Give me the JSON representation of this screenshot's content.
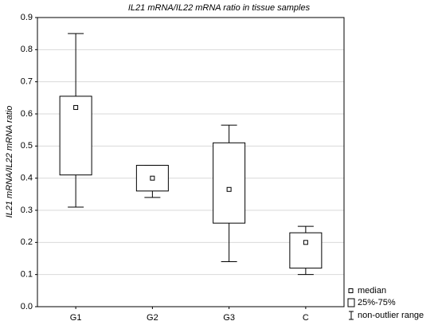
{
  "chart_data": {
    "type": "box",
    "title": "IL21 mRNA/IL22 mRNA ratio in tissue samples",
    "y_label": "IL21 mRNA/IL22 mRNA ratio",
    "categories": [
      "G1",
      "G2",
      "G3",
      "C"
    ],
    "min": [
      0.31,
      0.34,
      0.14,
      0.1
    ],
    "q1": [
      0.41,
      0.36,
      0.26,
      0.12
    ],
    "median": [
      0.62,
      0.4,
      0.365,
      0.2
    ],
    "q3": [
      0.655,
      0.44,
      0.51,
      0.23
    ],
    "max": [
      0.85,
      0.44,
      0.565,
      0.25
    ],
    "ylim": [
      0,
      0.9
    ],
    "yticks": [
      {
        "value": 0,
        "label": "0.0"
      },
      0.1,
      0.2,
      0.3,
      0.4,
      0.5,
      0.6,
      0.7,
      0.8,
      0.9
    ],
    "grid": true,
    "color": "#000000",
    "legend": [
      "median",
      "25%-75%",
      "non-outlier range"
    ],
    "legend_position": "lower right"
  }
}
